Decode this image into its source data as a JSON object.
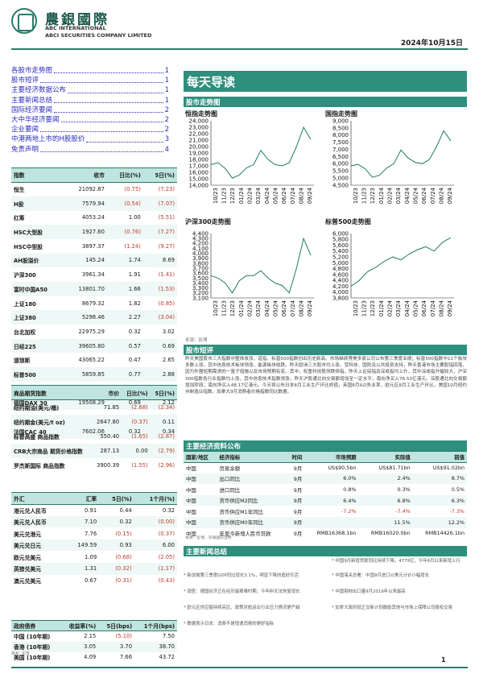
{
  "header": {
    "brand_cn": "農銀國際",
    "brand_en_1": "ABC INTERNATIONAL",
    "brand_en_2": "ABCI SECURITIES COMPANY LIMITED",
    "date": "2024年10月15日"
  },
  "toc": [
    {
      "label": "各股市走势图",
      "page": "1"
    },
    {
      "label": "股市短评",
      "page": "1"
    },
    {
      "label": "主要经济数据公布",
      "page": "1"
    },
    {
      "label": "主要新闻总结",
      "page": "1"
    },
    {
      "label": "国际经济要闻",
      "page": "2"
    },
    {
      "label": "大中华经济要闻",
      "page": "2"
    },
    {
      "label": "企业要闻",
      "page": "2"
    },
    {
      "label": "中港两地上市的H股股价",
      "page": "3"
    },
    {
      "label": "免责声明",
      "page": "4"
    }
  ],
  "index_table": {
    "headers": [
      "指数",
      "收市",
      "日比(%)",
      "5日(%)"
    ],
    "rows": [
      [
        "恒生",
        "21092.87",
        "(0.75)",
        "(7.23)"
      ],
      [
        "H股",
        "7579.94",
        "(0.54)",
        "(7.07)"
      ],
      [
        "红筹",
        "4053.24",
        "1.00",
        "(5.51)"
      ],
      [
        "HSC大型股",
        "1927.60",
        "(0.76)",
        "(7.27)"
      ],
      [
        "HSC中型股",
        "3897.37",
        "(1.24)",
        "(9.27)"
      ],
      [
        "AH股溢价",
        "145.24",
        "1.74",
        "8.69"
      ],
      [
        "沪深300",
        "3961.34",
        "1.91",
        "(1.41)"
      ],
      [
        "富时中国A50",
        "13801.70",
        "1.66",
        "(1.53)"
      ],
      [
        "上证180",
        "8679.32",
        "1.82",
        "(0.85)"
      ],
      [
        "上证380",
        "5298.46",
        "2.27",
        "(3.04)"
      ],
      [
        "台北加权",
        "22975.29",
        "0.32",
        "3.02"
      ],
      [
        "日经225",
        "39605.80",
        "0.57",
        "0.69"
      ],
      [
        "道琼斯",
        "43065.22",
        "0.47",
        "2.65"
      ],
      [
        "标普500",
        "5859.85",
        "0.77",
        "2.88"
      ],
      [
        "纳斯达克",
        "18502.69",
        "0.87",
        "3.23"
      ],
      [
        "德国DAX 30",
        "19508.29",
        "0.69",
        "2.12"
      ],
      [
        "富时100",
        "8292.66",
        "0.47",
        "(0.13)"
      ],
      [
        "法国CAC 40",
        "7602.06",
        "0.32",
        "0.34"
      ]
    ]
  },
  "commodity_table": {
    "headers": [
      "商品期货指数",
      "市价",
      "日比(%)",
      "5日(%)"
    ],
    "rows": [
      [
        "纽约期油(美元/桶)",
        "71.85",
        "(2.68)",
        "(2.34)"
      ],
      [
        "纽约期金(美元/t oz)",
        "2647.80",
        "(0.37)",
        "0.11"
      ],
      [
        "标普高盛 商品指数",
        "550.40",
        "(1.65)",
        "(2.87)"
      ],
      [
        "CRB大宗商品 期货价格指数",
        "287.13",
        "0.00",
        "(2.79)"
      ],
      [
        "罗杰斯国际 商品指数",
        "3900.39",
        "(1.55)",
        "(2.96)"
      ]
    ]
  },
  "fx_table": {
    "headers": [
      "外汇",
      "汇率",
      "5日(%)",
      "1个月(%)"
    ],
    "rows": [
      [
        "港元兑人民币",
        "0.91",
        "0.44",
        "0.32"
      ],
      [
        "美元兑人民币",
        "7.10",
        "0.32",
        "(0.00)"
      ],
      [
        "美元兑港元",
        "7.76",
        "(0.15)",
        "(0.37)"
      ],
      [
        "美元兑日元",
        "149.59",
        "0.93",
        "6.00"
      ],
      [
        "欧元兑美元",
        "1.09",
        "(0.68)",
        "(2.05)"
      ],
      [
        "英镑兑美元",
        "1.31",
        "(0.32)",
        "(1.17)"
      ],
      [
        "澳元兑美元",
        "0.67",
        "(0.31)",
        "(0.43)"
      ]
    ]
  },
  "bond_table": {
    "headers": [
      "政府债券",
      "收益率(%)",
      "5日(bps)",
      "1个月(bps)"
    ],
    "rows": [
      [
        "中国 (10年期)",
        "2.15",
        "(5.10)",
        "7.50"
      ],
      [
        "香港 (10年期)",
        "3.05",
        "3.70",
        "38.70"
      ],
      [
        "美国 (10年期)",
        "4.09",
        "7.66",
        "43.72"
      ]
    ]
  },
  "left_source": "来源：彭博",
  "banner": "每天导读",
  "charts_section": "股市走势图",
  "charts": [
    {
      "title": "恒指走势图",
      "chart_data": {
        "type": "line",
        "yticks": [
          14000,
          15000,
          16000,
          17000,
          18000,
          19000,
          20000,
          21000,
          22000,
          23000,
          24000
        ],
        "xticks": [
          "10/23",
          "11/23",
          "12/23",
          "01/24",
          "02/24",
          "03/24",
          "04/24",
          "05/24",
          "06/24",
          "07/24",
          "08/24",
          "09/24"
        ],
        "x": [
          "10/23",
          "11/23",
          "12/23",
          "01/24",
          "02/24",
          "03/24",
          "04/24",
          "05/24",
          "06/24",
          "07/24",
          "08/24",
          "09/24",
          "09/24",
          "10/24",
          "10/24"
        ],
        "values": [
          17200,
          17500,
          16600,
          15100,
          15600,
          16700,
          17200,
          19400,
          18000,
          17200,
          17000,
          17500,
          20000,
          23000,
          21100
        ]
      }
    },
    {
      "title": "国指走势图",
      "chart_data": {
        "type": "line",
        "yticks": [
          4500,
          5000,
          5500,
          6000,
          6500,
          7000,
          7500,
          8000,
          8500,
          9000
        ],
        "xticks": [
          "10/23",
          "11/23",
          "12/23",
          "01/24",
          "02/24",
          "03/24",
          "04/24",
          "05/24",
          "06/24",
          "07/24",
          "08/24",
          "09/24"
        ],
        "x": [
          "10/23",
          "11/23",
          "12/23",
          "01/24",
          "02/24",
          "03/24",
          "04/24",
          "05/24",
          "06/24",
          "07/24",
          "08/24",
          "09/24",
          "09/24",
          "10/24",
          "10/24"
        ],
        "values": [
          5850,
          5950,
          5650,
          5050,
          5200,
          5700,
          6000,
          6950,
          6400,
          6100,
          6000,
          6300,
          7200,
          8300,
          7600
        ]
      }
    },
    {
      "title": "沪深300走势图",
      "chart_data": {
        "type": "line",
        "yticks": [
          3100,
          3200,
          3300,
          3400,
          3500,
          3600,
          3700,
          3800,
          3900,
          4000,
          4100,
          4200,
          4300,
          4400
        ],
        "xticks": [
          "10/23",
          "11/23",
          "12/23",
          "01/24",
          "02/24",
          "03/24",
          "04/24",
          "05/24",
          "06/24",
          "07/24",
          "08/24",
          "09/24"
        ],
        "x": [
          "10/23",
          "11/23",
          "12/23",
          "01/24",
          "02/24",
          "03/24",
          "04/24",
          "05/24",
          "06/24",
          "07/24",
          "08/24",
          "09/24",
          "09/24",
          "10/24",
          "10/24"
        ],
        "values": [
          3550,
          3500,
          3400,
          3200,
          3450,
          3550,
          3550,
          3650,
          3500,
          3400,
          3350,
          3200,
          3700,
          4300,
          3960
        ]
      }
    },
    {
      "title": "标普500走势图",
      "chart_data": {
        "type": "line",
        "yticks": [
          3800,
          4000,
          4200,
          4400,
          4600,
          4800,
          5000,
          5200,
          5400,
          5600,
          5800,
          6000
        ],
        "xticks": [
          "10/23",
          "11/23",
          "12/23",
          "01/24",
          "02/24",
          "03/24",
          "04/24",
          "05/24",
          "06/24",
          "07/24",
          "08/24",
          "09/24"
        ],
        "x": [
          "10/23",
          "11/23",
          "12/23",
          "01/24",
          "02/24",
          "03/24",
          "04/24",
          "05/24",
          "06/24",
          "07/24",
          "08/24",
          "09/24",
          "10/24"
        ],
        "values": [
          4200,
          4400,
          4700,
          4850,
          5050,
          5200,
          5100,
          5300,
          5450,
          5550,
          5400,
          5700,
          5860
        ]
      }
    }
  ],
  "charts_source": "来源：彭博",
  "commentary_title": "股市短评",
  "commentary": "昨天美国股市三大指数中整体收涨，道指、标普500指数创出历史新高，市场继续等美多家公司公布第三季度业绩；标普500指数中11个板块多数上涨，其中信息技术板块领涨，能源板块收跌。昨天欧洲三大股市均上涨。受科技、国防及公共投资支持，昨天香港市场主要股指回落，因为外围短期需求的一篮子措施以及市场预期有变。其中，权重科技股领跌恒指，昨天上证综指及深成指均上升，其中深成指升幅较大，沪深300指数各行业指数均上涨，其中信息技术指数领涨。昨天沪股通北向交易额增加至一定水平，南向净买入76.53亿港元。深股通北向交易额增加阶段；南向净买入48.17亿港元。今天将公布日本8月工业生产环比终值，英国8月ILO失业率，欧元区8月工业生产环比，美国10月纽约州制造业指数。加拿大9月消费者价格指数同比数据。",
  "econ_section": "主要经济资料公布",
  "econ_table": {
    "headers": [
      "国家/地区",
      "经济指标",
      "时间",
      "市场预期",
      "实际值",
      "前值"
    ],
    "rows": [
      [
        "中国",
        "贸易余额",
        "9月",
        "US$90.5bn",
        "US$81.71bn",
        "US$91.02bn"
      ],
      [
        "中国",
        "出口同比",
        "9月",
        "6.0%",
        "2.4%",
        "8.7%"
      ],
      [
        "中国",
        "进口同比",
        "9月",
        "0.8%",
        "0.3%",
        "0.5%"
      ],
      [
        "中国",
        "货币供应M2同比",
        "9月",
        "6.4%",
        "6.8%",
        "6.3%"
      ],
      [
        "中国",
        "货币供应M1年同比",
        "9月",
        "-7.2%",
        "-7.4%",
        "-7.3%"
      ],
      [
        "中国",
        "货币供应M0年同比",
        "9月",
        "",
        "11.5%",
        "12.2%"
      ],
      [
        "中国",
        "年至今新增人民币贷款",
        "9月",
        "RMB16368.1bn",
        "RMB16020.0bn",
        "RMB14426.1bn"
      ]
    ]
  },
  "econ_source": "来源：彭博，农银国际证券",
  "news_section": "主要新闻总结",
  "news": [
    "新加坡第三季度GDP同比增长3.1%，明显下降创造好乐活",
    "调查：德国经济正在经历最艰难时期，今年料无法恢复增长",
    "欧元区供应链持续高压，政策对航运业行业压力情况更严峻",
    "数据表示日本：消费不是增速消费的更好指标",
    "中国9月新增贷款同比持续下降，4779亿，今年6月以来新增上行",
    "中国海关总署：中国9月进口以美元计价小幅增长",
    "中国钢材出口量9月2019年以来最高",
    "加拿大政府就正交新计划鼓励其他与市场上保障公司股权交易"
  ],
  "page_number": "1"
}
